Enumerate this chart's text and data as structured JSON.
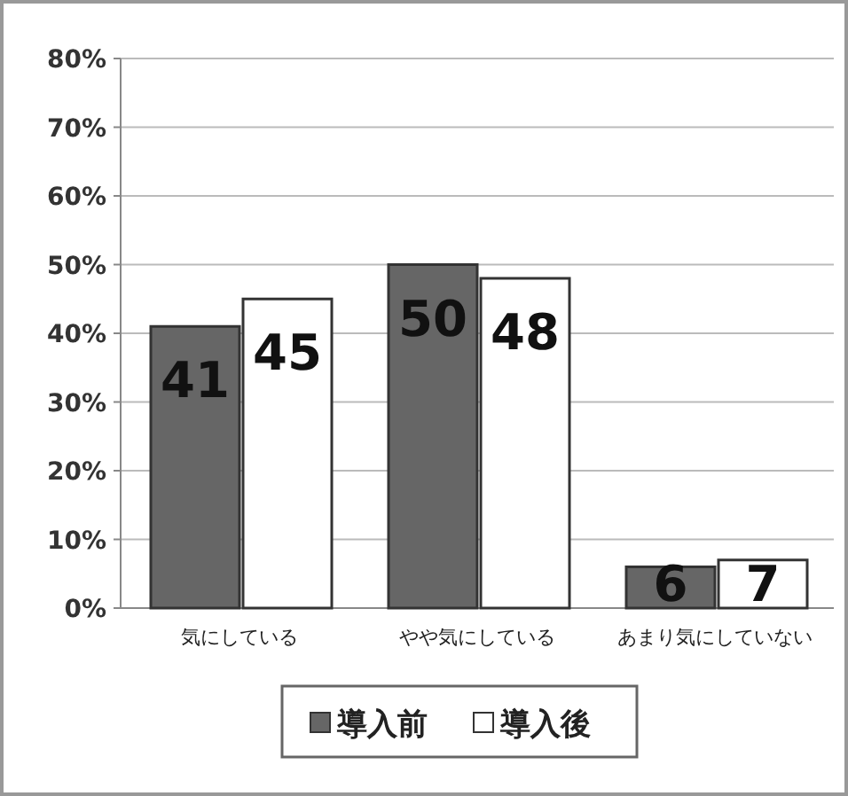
{
  "chart_data": {
    "type": "bar",
    "categories": [
      "気にしている",
      "やや気にしている",
      "あまり気にしていない"
    ],
    "series": [
      {
        "name": "導入前",
        "color": "#666666",
        "values": [
          41,
          50,
          6
        ]
      },
      {
        "name": "導入後",
        "color": "#ffffff",
        "values": [
          45,
          48,
          7
        ]
      }
    ],
    "ylim": [
      0,
      80
    ],
    "yticks": [
      {
        "value": 0,
        "label": "0%"
      },
      {
        "value": 10,
        "label": "10%"
      },
      {
        "value": 20,
        "label": "20%"
      },
      {
        "value": 30,
        "label": "30%"
      },
      {
        "value": 40,
        "label": "40%"
      },
      {
        "value": 50,
        "label": "50%"
      },
      {
        "value": 60,
        "label": "60%"
      },
      {
        "value": 70,
        "label": "70%"
      },
      {
        "value": 80,
        "label": "80%"
      }
    ],
    "grid": "y",
    "legend": "bottom",
    "data_labels": true
  }
}
